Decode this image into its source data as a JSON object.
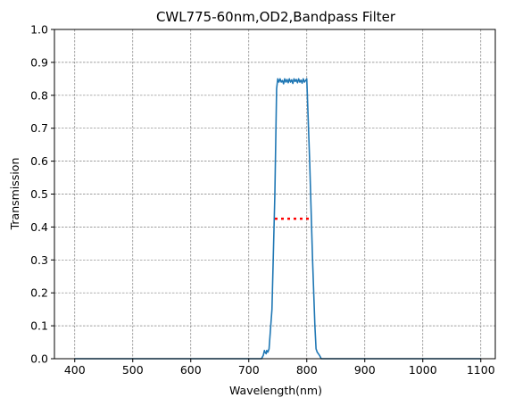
{
  "chart_data": {
    "type": "line",
    "title": "CWL775-60nm,OD2,Bandpass Filter",
    "xlabel": "Wavelength(nm)",
    "ylabel": "Transmission",
    "xlim": [
      365,
      1125
    ],
    "ylim": [
      0,
      1.0
    ],
    "xticks": [
      400,
      500,
      600,
      700,
      800,
      900,
      1000,
      1100
    ],
    "xtick_labels": [
      "400",
      "500",
      "600",
      "700",
      "800",
      "900",
      "1000",
      "1100"
    ],
    "yticks": [
      0.0,
      0.1,
      0.2,
      0.3,
      0.4,
      0.5,
      0.6,
      0.7,
      0.8,
      0.9,
      1.0
    ],
    "ytick_labels": [
      "0.0",
      "0.1",
      "0.2",
      "0.3",
      "0.4",
      "0.5",
      "0.6",
      "0.7",
      "0.8",
      "0.9",
      "1.0"
    ],
    "grid": true,
    "legend": null,
    "colors": {
      "series": "#1f77b4",
      "fwhm_marker": "#ff0000",
      "grid": "#808080"
    },
    "series": [
      {
        "style": "solid",
        "x": [
          400,
          700,
          722,
          725,
          727,
          728,
          730,
          731,
          733,
          735,
          740,
          745,
          748,
          750,
          752,
          754,
          756,
          758,
          760,
          762,
          764,
          766,
          768,
          770,
          772,
          774,
          776,
          778,
          780,
          782,
          784,
          786,
          788,
          790,
          792,
          794,
          796,
          798,
          800,
          805,
          810,
          814,
          816,
          818,
          820,
          822,
          825,
          830,
          1100
        ],
        "y": [
          0.0,
          0.0,
          0.0,
          0.01,
          0.025,
          0.02,
          0.015,
          0.025,
          0.02,
          0.03,
          0.15,
          0.5,
          0.82,
          0.85,
          0.84,
          0.85,
          0.84,
          0.845,
          0.835,
          0.85,
          0.84,
          0.848,
          0.838,
          0.85,
          0.84,
          0.847,
          0.836,
          0.85,
          0.842,
          0.848,
          0.838,
          0.85,
          0.84,
          0.846,
          0.837,
          0.85,
          0.84,
          0.845,
          0.85,
          0.6,
          0.3,
          0.1,
          0.03,
          0.02,
          0.015,
          0.01,
          0.0,
          0.0,
          0.0
        ]
      },
      {
        "style": "dotted",
        "x": [
          745,
          805
        ],
        "y": [
          0.425,
          0.425
        ]
      }
    ]
  }
}
